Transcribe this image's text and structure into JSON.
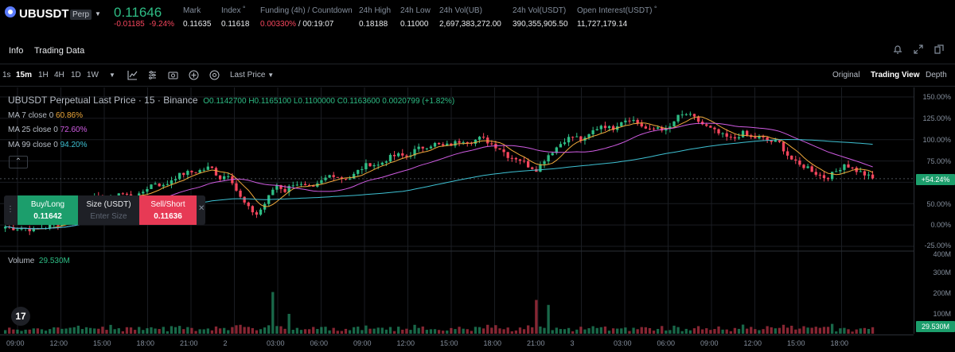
{
  "header": {
    "symbol": "UBUSDT",
    "perp_badge": "Perp",
    "last_price": "0.11646",
    "change": "-0.01185",
    "change_pct": "-9.24%",
    "stats": [
      {
        "label": "Mark",
        "value": "0.11635"
      },
      {
        "label": "Index",
        "value": "0.11618"
      },
      {
        "label": "Funding (4h) / Countdown",
        "value": "0.00330%",
        "value2": "/ 00:19:07"
      },
      {
        "label": "24h High",
        "value": "0.18188"
      },
      {
        "label": "24h Low",
        "value": "0.11000"
      },
      {
        "label": "24h Vol(UB)",
        "value": "2,697,383,272.00"
      },
      {
        "label": "24h Vol(USDT)",
        "value": "390,355,905.50"
      },
      {
        "label": "Open Interest(USDT)",
        "value": "11,727,179.14"
      }
    ]
  },
  "tabs": {
    "info": "Info",
    "trading_data": "Trading Data"
  },
  "toolbar": {
    "intervals": [
      "1s",
      "15m",
      "1H",
      "4H",
      "1D",
      "1W"
    ],
    "active_interval": "15m",
    "price_type": "Last Price",
    "views": [
      "Original",
      "Trading View",
      "Depth"
    ],
    "active_view": "Trading View"
  },
  "chart": {
    "title": "UBUSDT Perpetual Last Price · 15 · Binance",
    "ohlc": "O0.1142700 H0.1165100 L0.1100000 C0.1163600 0.0020799 (+1.82%)",
    "ma": [
      {
        "label": "MA 7 close 0",
        "value": "60.86%",
        "color": "#f0a93b"
      },
      {
        "label": "MA 25 close 0",
        "value": "72.60%",
        "color": "#d05ce3"
      },
      {
        "label": "MA 99 close 0",
        "value": "94.20%",
        "color": "#3ec1d3"
      }
    ],
    "volume_label": "Volume",
    "volume_value": "29.530M",
    "current_pct": "+54.24%",
    "current_vol": "29.530M",
    "colors": {
      "up": "#2ebd85",
      "down": "#f6465d",
      "bg": "#000000"
    }
  },
  "trade": {
    "buy_label": "Buy/Long",
    "buy_price": "0.11642",
    "size_label": "Size (USDT)",
    "size_placeholder": "Enter Size",
    "sell_label": "Sell/Short",
    "sell_price": "0.11636"
  },
  "axes": {
    "y_price": [
      "150.00%",
      "125.00%",
      "100.00%",
      "75.00%",
      "50.00%",
      "25.00%",
      "0.00%",
      "-25.00%"
    ],
    "y_volume": [
      "400M",
      "300M",
      "200M",
      "100M"
    ],
    "x": [
      "09:00",
      "12:00",
      "15:00",
      "18:00",
      "21:00",
      "2",
      "03:00",
      "06:00",
      "09:00",
      "12:00",
      "15:00",
      "18:00",
      "21:00",
      "3",
      "03:00",
      "06:00",
      "09:00",
      "12:00",
      "15:00",
      "18:00"
    ]
  },
  "chart_data": {
    "type": "candlestick",
    "y_unit": "% change",
    "ylim": [
      -25,
      150
    ],
    "close_pct": [
      -2,
      -4,
      -3,
      -6,
      -3,
      -1,
      3,
      10,
      20,
      34,
      30,
      24,
      38,
      35,
      30,
      42,
      50,
      45,
      55,
      60,
      62,
      64,
      68,
      55,
      60,
      35,
      20,
      12,
      28,
      48,
      40,
      50,
      45,
      42,
      52,
      60,
      55,
      55,
      65,
      72,
      70,
      78,
      82,
      80,
      88,
      92,
      95,
      92,
      95,
      100,
      98,
      102,
      96,
      90,
      80,
      78,
      70,
      65,
      80,
      90,
      100,
      104,
      98,
      110,
      118,
      112,
      122,
      125,
      118,
      110,
      115,
      110,
      126,
      130,
      124,
      116,
      110,
      104,
      100,
      108,
      102,
      102,
      98,
      96,
      80,
      70,
      68,
      60,
      55,
      62,
      72,
      65,
      60,
      54
    ]
  }
}
